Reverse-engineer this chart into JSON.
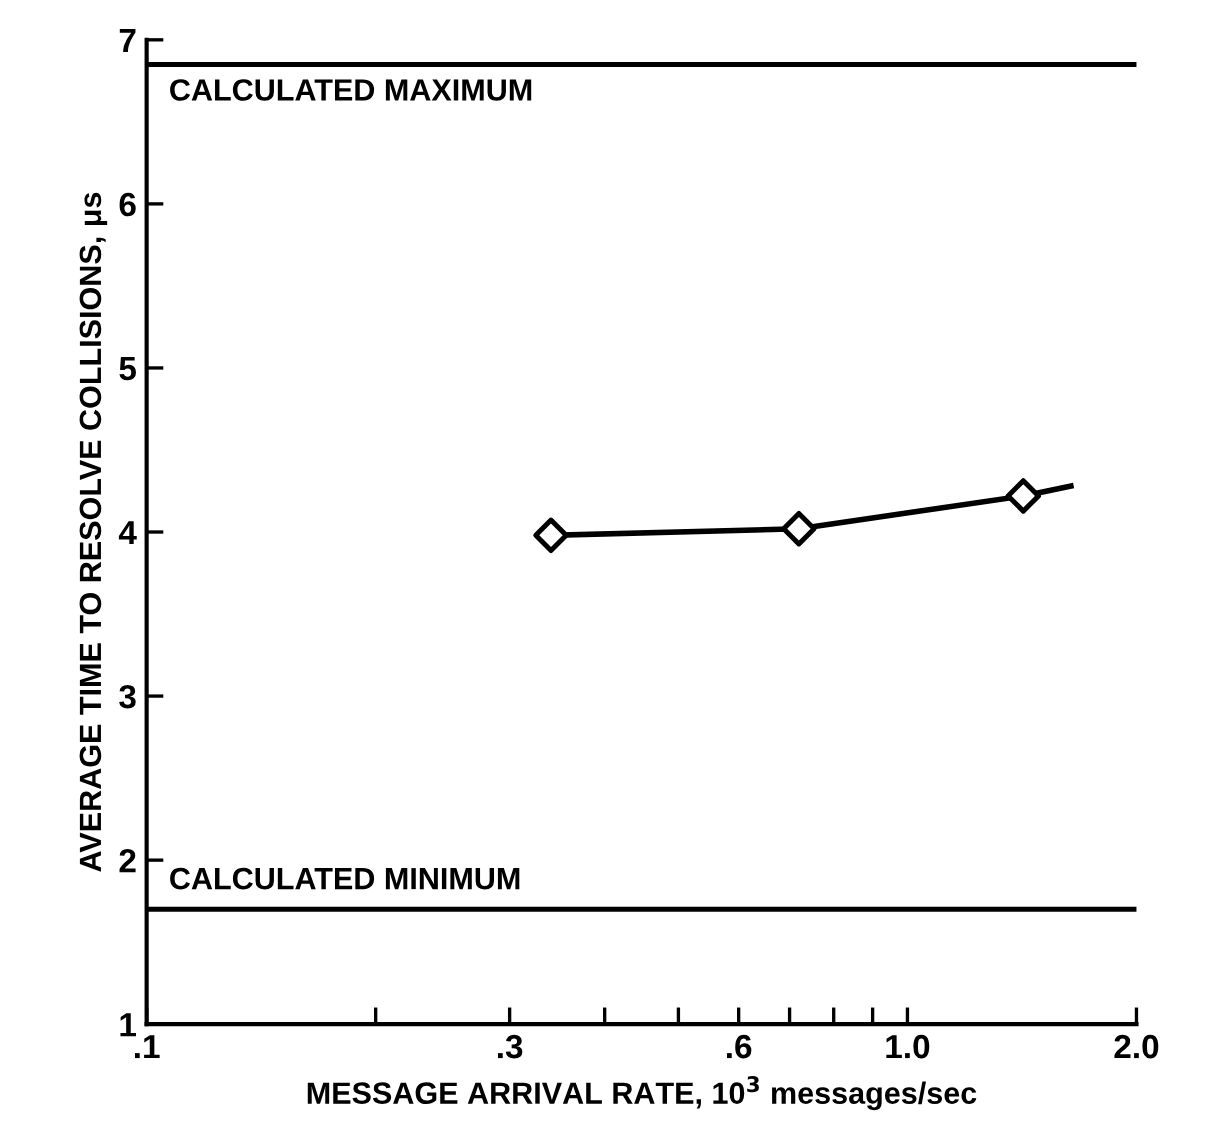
{
  "chart_data": {
    "type": "line",
    "xlabel": "MESSAGE ARRIVAL RATE, 10$^{3}$ messages/sec",
    "ylabel": "AVERAGE TIME TO RESOLVE COLLISIONS, μs",
    "log": "x",
    "xlim": [
      0.1,
      2.0
    ],
    "ylim": [
      1,
      7
    ],
    "xticks": [
      {
        "value": 0.1,
        "label": ".1"
      },
      {
        "value": 0.2,
        "label": null
      },
      {
        "value": 0.3,
        "label": ".3"
      },
      {
        "value": 0.4,
        "label": null
      },
      {
        "value": 0.5,
        "label": null
      },
      {
        "value": 0.6,
        "label": ".6"
      },
      {
        "value": 0.7,
        "label": null
      },
      {
        "value": 0.8,
        "label": null
      },
      {
        "value": 0.9,
        "label": null
      },
      {
        "value": 1.0,
        "label": "1.0"
      },
      {
        "value": 2.0,
        "label": "2.0"
      }
    ],
    "yticks": [
      1,
      2,
      3,
      4,
      5,
      6,
      7
    ],
    "series": [
      {
        "color": "#000000",
        "marker": "none",
        "x": [
          0.34,
          0.72,
          1.42,
          1.64
        ],
        "values": [
          3.98,
          4.02,
          4.22,
          4.28
        ]
      },
      {
        "type": "scatter",
        "color": "#000000",
        "marker": "diamond",
        "x": [
          0.34,
          0.72,
          1.42
        ],
        "values": [
          3.98,
          4.02,
          4.22
        ]
      }
    ],
    "ref_lines": [
      {
        "axis": "y",
        "value": 6.85,
        "label": "CALCULATED MAXIMUM",
        "color": "#000000"
      },
      {
        "axis": "y",
        "value": 1.7,
        "label": "CALCULATED MINIMUM",
        "color": "#000000"
      }
    ],
    "grid": false,
    "legend": false
  }
}
